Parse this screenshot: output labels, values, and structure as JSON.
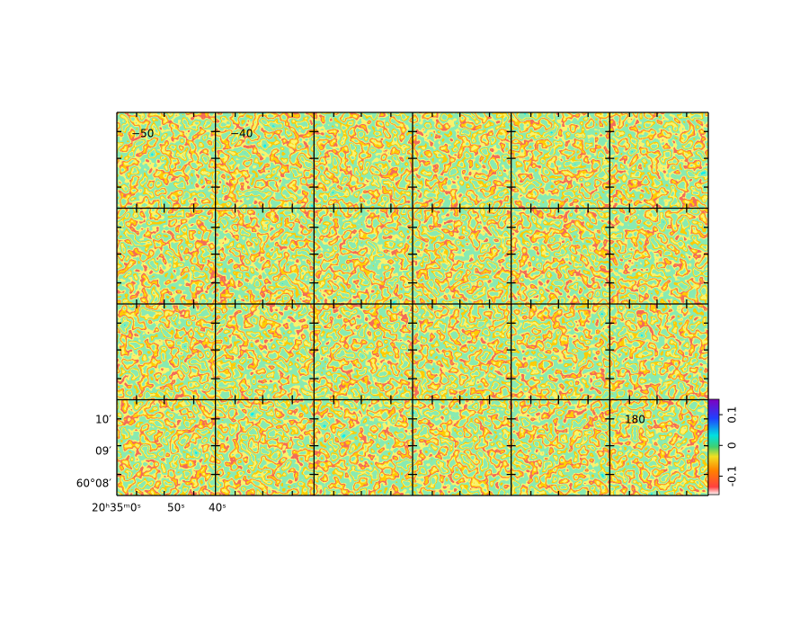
{
  "chart_data": {
    "type": "channel-map",
    "panel_labels": [
      "−50",
      "−40",
      "180"
    ],
    "y_axis_labels": [
      "10′",
      "09′",
      "60°08′"
    ],
    "x_axis_labels": [
      "20ʰ35ᵐ0ˢ",
      "50ˢ",
      "40ˢ"
    ],
    "colorbar": {
      "clim": [
        -0.16,
        0.15
      ],
      "ticks": [
        0.1,
        0,
        -0.1
      ]
    }
  }
}
